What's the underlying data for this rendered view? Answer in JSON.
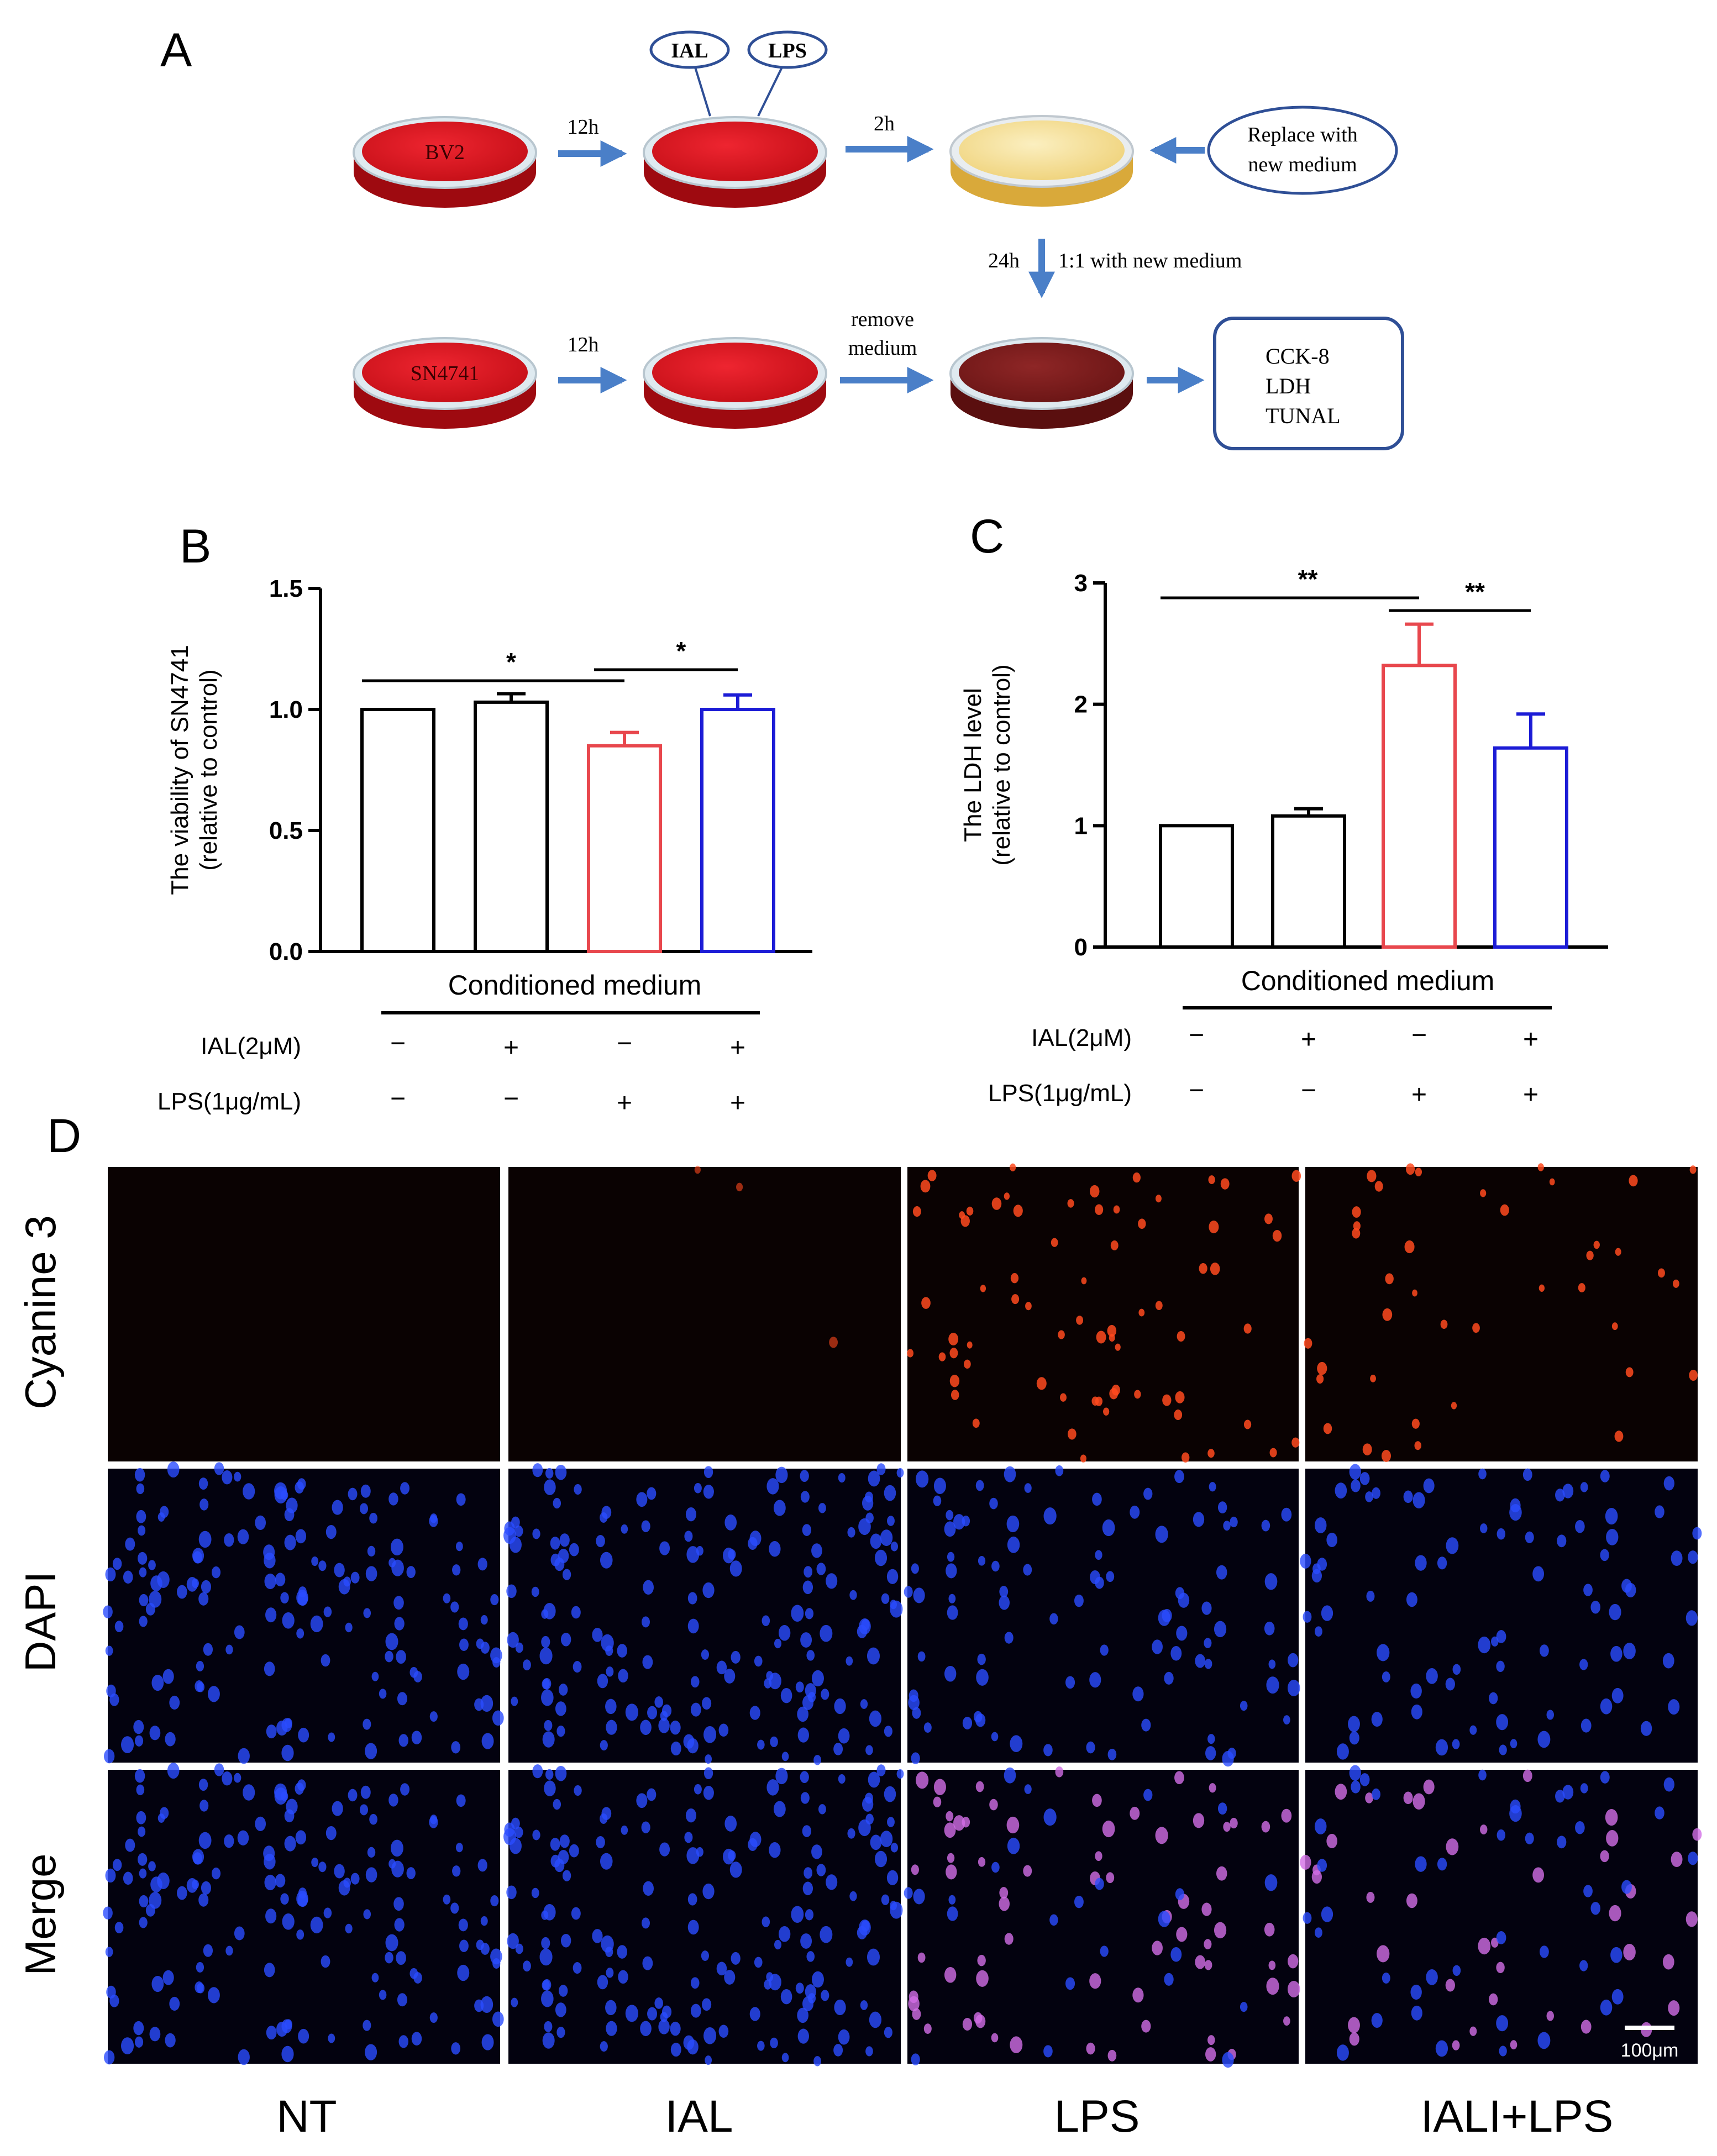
{
  "panels": {
    "a": "A",
    "b": "B",
    "c": "C",
    "d": "D"
  },
  "panel_a": {
    "dish_bv2": "BV2",
    "dish_sn4741": "SN4741",
    "label_ial": "IAL",
    "label_lps": "LPS",
    "arrow_12h_top": "12h",
    "arrow_2h": "2h",
    "replace_line1": "Replace with",
    "replace_line2": "new medium",
    "arrow_24h": "24h",
    "ratio_text": "1:1 with new medium",
    "arrow_12h_bottom": "12h",
    "remove_line1": "remove",
    "remove_line2": "medium",
    "assays": [
      "CCK-8",
      "LDH",
      "TUNAL"
    ],
    "colors": {
      "dish_red": "#d4141c",
      "dish_yellow": "#f4dc8c",
      "dish_brown": "#7a1c1c",
      "arrow": "#4a7fc8",
      "box_border": "#2f4f96"
    }
  },
  "chart_data": [
    {
      "type": "bar",
      "panel": "B",
      "ylabel_line1": "The viability of SN4741",
      "ylabel_line2": "(relative to control)",
      "ylim": [
        0,
        1.5
      ],
      "yticks": [
        "0.0",
        "0.5",
        "1.0",
        "1.5"
      ],
      "ytick_values": [
        0,
        0.5,
        1.0,
        1.5
      ],
      "values": [
        1.0,
        1.03,
        0.85,
        1.0
      ],
      "errors": [
        0.0,
        0.035,
        0.055,
        0.06
      ],
      "colors": [
        "#000000",
        "#000000",
        "#e8474d",
        "#1c1cd6"
      ],
      "xlabel": "Conditioned medium",
      "conditions": [
        {
          "name": "IAL(2μM)",
          "signs": [
            "−",
            "+",
            "−",
            "+"
          ]
        },
        {
          "name": "LPS(1μg/mL)",
          "signs": [
            "−",
            "−",
            "+",
            "+"
          ]
        }
      ],
      "significance": [
        {
          "from": 0,
          "to": 2,
          "label": "*"
        },
        {
          "from": 2,
          "to": 3,
          "label": "*"
        }
      ]
    },
    {
      "type": "bar",
      "panel": "C",
      "ylabel_line1": "The LDH level",
      "ylabel_line2": "(relative to control)",
      "ylim": [
        0,
        3
      ],
      "yticks": [
        "0",
        "1",
        "2",
        "3"
      ],
      "ytick_values": [
        0,
        1,
        2,
        3
      ],
      "values": [
        1.0,
        1.08,
        2.32,
        1.64
      ],
      "errors": [
        0.0,
        0.06,
        0.34,
        0.28
      ],
      "colors": [
        "#000000",
        "#000000",
        "#e8474d",
        "#1c1cd6"
      ],
      "xlabel": "Conditioned medium",
      "conditions": [
        {
          "name": "IAL(2μM)",
          "signs": [
            "−",
            "+",
            "−",
            "+"
          ]
        },
        {
          "name": "LPS(1μg/mL)",
          "signs": [
            "−",
            "−",
            "+",
            "+"
          ]
        }
      ],
      "significance": [
        {
          "from": 0,
          "to": 2,
          "label": "**"
        },
        {
          "from": 2,
          "to": 3,
          "label": "**"
        }
      ]
    }
  ],
  "panel_d": {
    "row_labels": [
      "Cyanine 3",
      "DAPI",
      "Merge"
    ],
    "column_labels": [
      "NT",
      "IAL",
      "LPS",
      "IALI+LPS"
    ],
    "scale_bar": "100μm",
    "red_counts": [
      0,
      3,
      70,
      40
    ],
    "blue_counts": [
      150,
      170,
      95,
      85
    ],
    "colors": {
      "panel_bg": "#060101",
      "red_cell": "#ff4a1e",
      "blue_cell": "#2a4cff",
      "merge_pink": "#d26ee6"
    }
  }
}
